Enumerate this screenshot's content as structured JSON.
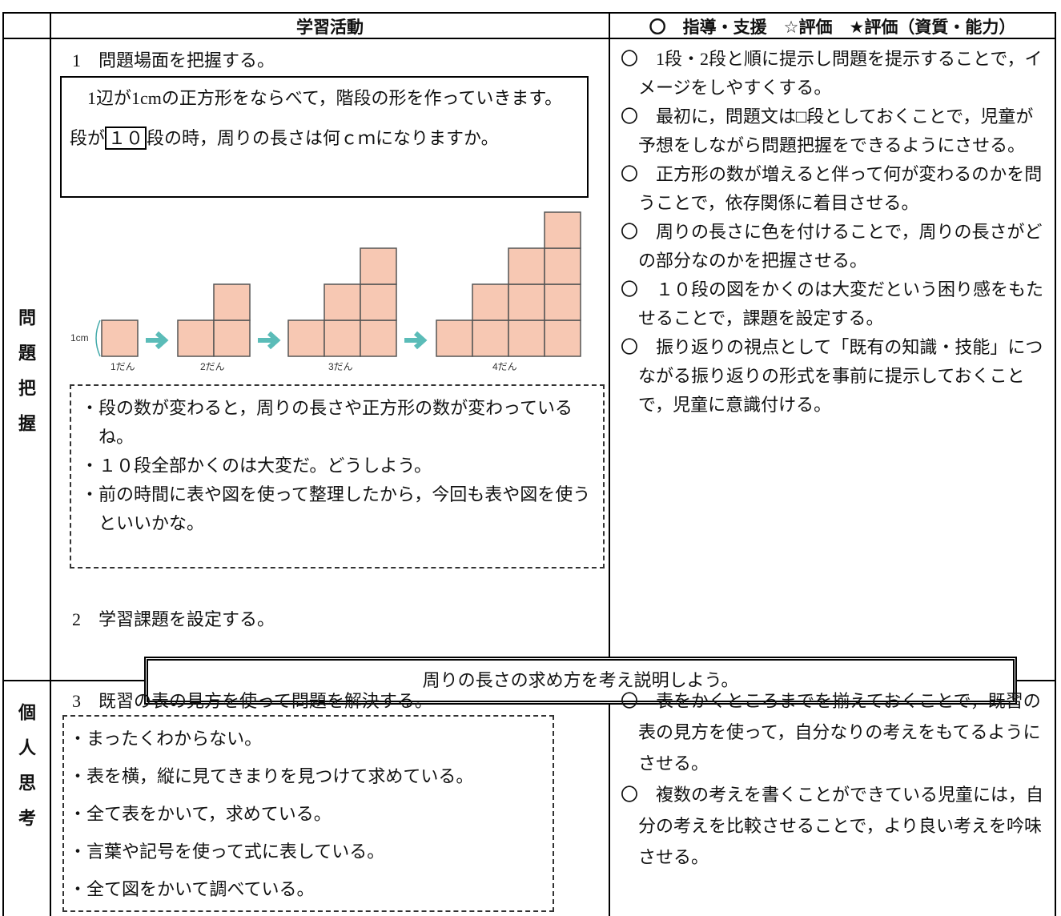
{
  "table": {
    "header": [
      "学習活動",
      "〇　指導・支援　☆評価　★評価（資質・能力）"
    ],
    "rows": [
      {
        "section": "問題把握",
        "activity": {
          "step1": "1　問題場面を把握する。",
          "problem": {
            "line1": "1辺が1cmの正方形をならべて，階段の形を作っていきます。",
            "pre": "段が",
            "boxed": "１０",
            "post": "段の時，周りの長さは何ｃｍになりますか。"
          },
          "figure": {
            "unit": "1cm",
            "labels": [
              "1だん",
              "2だん",
              "3だん",
              "4だん"
            ]
          },
          "thoughts": [
            "・段の数が変わると，周りの長さや正方形の数が変わっているね。",
            "・１０段全部かくのは大変だ。どうしよう。",
            "・前の時間に表や図を使って整理したから，今回も表や図を使うといいかな。"
          ],
          "step2": "2　学習課題を設定する。",
          "task": "周りの長さの求め方を考え説明しよう。"
        },
        "support": [
          "〇　1段・2段と順に提示し問題を提示することで，イメージをしやすくする。",
          "〇　最初に，問題文は□段としておくことで，児童が予想をしながら問題把握をできるようにさせる。",
          "〇　正方形の数が増えると伴って何が変わるのかを問うことで，依存関係に着目させる。",
          "〇　周りの長さに色を付けることで，周りの長さがどの部分なのかを把握させる。",
          "〇　１０段の図をかくのは大変だという困り感をもたせることで，課題を設定する。",
          "〇　振り返りの視点として「既有の知識・技能」につながる振り返りの形式を事前に提示しておくことで，児童に意識付ける。"
        ]
      },
      {
        "section": "個人思考",
        "activity": {
          "step3": "3　既習の表の見方を使って問題を解決する。",
          "responses": [
            "・まったくわからない。",
            "・表を横，縦に見てきまりを見つけて求めている。",
            "・全て表をかいて，求めている。",
            "・言葉や記号を使って式に表している。",
            "・全て図をかいて調べている。"
          ]
        },
        "support": [
          "〇　表をかくところまでを揃えておくことで，既習の表の見方を使って，自分なりの考えをもてるようにさせる。",
          "〇　複数の考えを書くことができている児童には，自分の考えを比較させることで，より良い考えを吟味させる。"
        ]
      }
    ]
  }
}
